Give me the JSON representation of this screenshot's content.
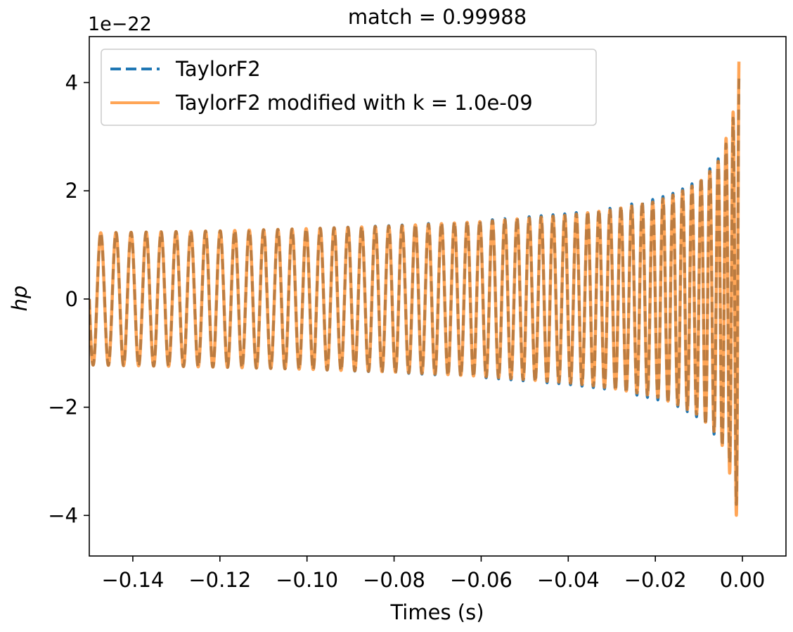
{
  "chart_data": {
    "type": "line",
    "title": "match = 0.99988",
    "xlabel": "Times (s)",
    "ylabel": "hp",
    "y_offset_label": "1e−22",
    "xlim": [
      -0.15,
      0.01
    ],
    "ylim": [
      -4.75,
      4.85
    ],
    "x_ticks": [
      -0.14,
      -0.12,
      -0.1,
      -0.08,
      -0.06,
      -0.04,
      -0.02,
      0.0
    ],
    "x_tick_labels": [
      "−0.14",
      "−0.12",
      "−0.10",
      "−0.08",
      "−0.06",
      "−0.04",
      "−0.02",
      "0.00"
    ],
    "y_ticks": [
      -4,
      -2,
      0,
      2,
      4
    ],
    "y_tick_labels": [
      "−4",
      "−2",
      "0",
      "2",
      "4"
    ],
    "grid": false,
    "legend_position": "top-left",
    "merger_time": -0.0008,
    "series": [
      {
        "name": "TaylorF2",
        "color": "#1f77b4",
        "style": "dashed",
        "envelope_t": [
          -0.15,
          -0.12,
          -0.1,
          -0.08,
          -0.06,
          -0.04,
          -0.03,
          -0.02,
          -0.015,
          -0.01,
          -0.007,
          -0.005,
          -0.003,
          -0.002,
          -0.0008
        ],
        "envelope_a": [
          1.22,
          1.26,
          1.3,
          1.36,
          1.45,
          1.58,
          1.68,
          1.85,
          1.98,
          2.2,
          2.45,
          2.65,
          3.0,
          3.4,
          4.2
        ],
        "freq_t": [
          -0.15,
          -0.12,
          -0.09,
          -0.06,
          -0.04,
          -0.02,
          -0.01,
          -0.005,
          -0.002,
          -0.0008
        ],
        "freq_f": [
          284,
          298,
          316,
          345,
          375,
          420,
          480,
          540,
          650,
          800
        ]
      },
      {
        "name": "TaylorF2 modified with k = 1.0e-09",
        "color": "#ff7f0e",
        "style": "solid",
        "envelope_t": [
          -0.15,
          -0.12,
          -0.1,
          -0.08,
          -0.06,
          -0.04,
          -0.03,
          -0.02,
          -0.015,
          -0.01,
          -0.007,
          -0.005,
          -0.003,
          -0.002,
          -0.0008
        ],
        "envelope_a": [
          1.22,
          1.26,
          1.3,
          1.35,
          1.43,
          1.55,
          1.65,
          1.8,
          1.95,
          2.15,
          2.4,
          2.6,
          3.2,
          3.5,
          4.5
        ],
        "freq_t": [
          -0.15,
          -0.12,
          -0.09,
          -0.06,
          -0.04,
          -0.02,
          -0.01,
          -0.005,
          -0.002,
          -0.0008
        ],
        "freq_f": [
          284,
          298,
          316,
          345,
          375,
          420,
          480,
          540,
          650,
          800
        ]
      }
    ]
  }
}
